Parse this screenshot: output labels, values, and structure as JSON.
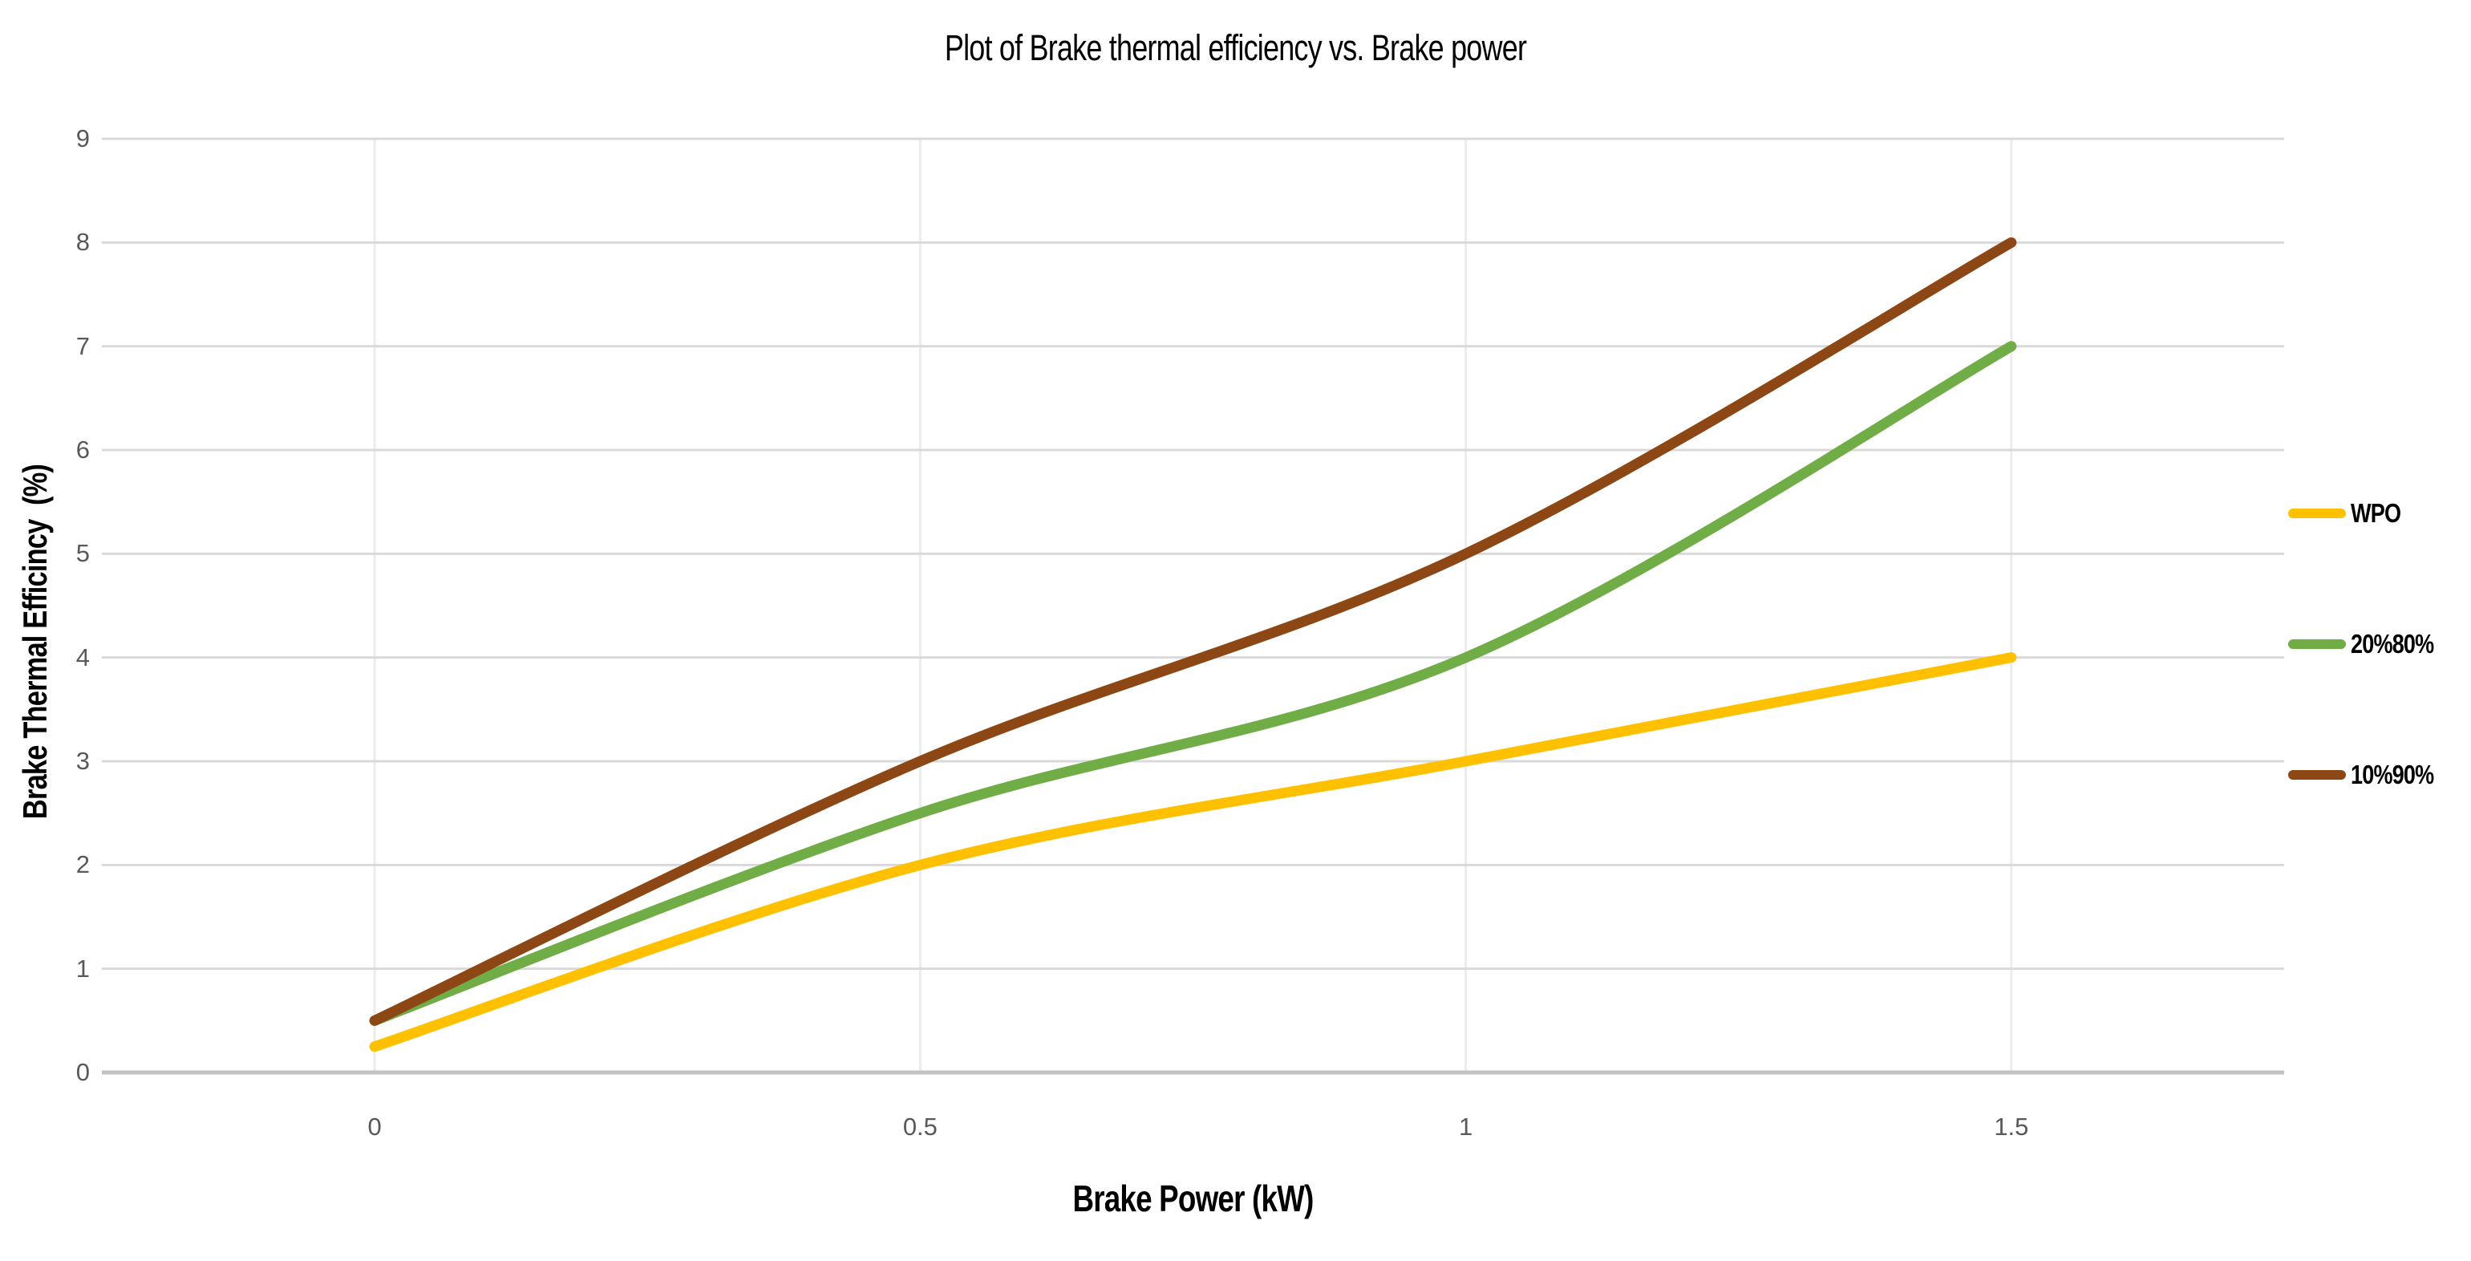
{
  "chart_data": {
    "type": "line",
    "title": "Plot of Brake thermal efficiency vs. Brake power",
    "xlabel": "Brake Power (kW)",
    "ylabel": "Brake Thermal Efficincy  (%)",
    "categories": [
      "0",
      "0.5",
      "1",
      "1.5"
    ],
    "y_ticks": [
      "0",
      "1",
      "2",
      "3",
      "4",
      "5",
      "6",
      "7",
      "8",
      "9"
    ],
    "ylim": [
      0,
      9
    ],
    "smoothed_lines": true,
    "grid": "horizontal major gridlines on, faint vertical lines at x ticks",
    "legend_position": "right",
    "series": [
      {
        "name": "WPO",
        "color": "#FFC000",
        "values": [
          0.25,
          2,
          3,
          4
        ]
      },
      {
        "name": "20%80%",
        "color": "#70AD47",
        "values": [
          0.5,
          2.5,
          4,
          7
        ]
      },
      {
        "name": "10%90%",
        "color": "#8C4715",
        "values": [
          0.5,
          3,
          5,
          8
        ]
      }
    ],
    "colors": {
      "background": "#ffffff",
      "gridline": "#D9D9D9",
      "vertical_gridline": "#ECECEC",
      "axis_line": "#C2C2C2",
      "tick_text": "#595959",
      "title_text": "#000000"
    }
  }
}
